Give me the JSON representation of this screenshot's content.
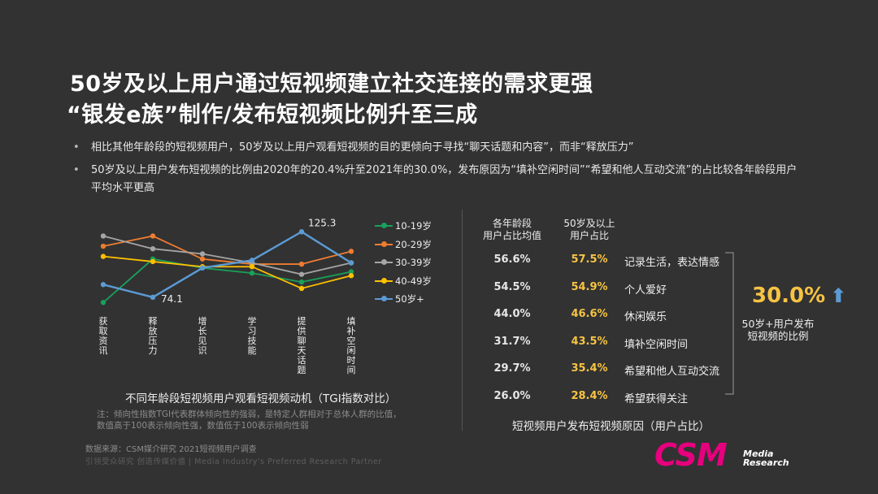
{
  "title_line1": "50岁及以上用户通过短视频建立社交连接的需求更强",
  "title_line2": "“银发e族”制作/发布短视频比例升至三成",
  "bullets": [
    "相比其他年龄段的短视频用户，50岁及以上用户观看短视频的目的更倾向于寻找“聊天话题和内容”，而非“释放压力”",
    "50岁及以上用户发布短视频的比例由2020年的20.4%升至2021年的30.0%，发布原因为“填补空闲时间”“希望和他人互动交流”的占比较各年龄段用户平均水平更高"
  ],
  "bullet_marker": "•",
  "colors": {
    "10-19": "#19a05a",
    "20-29": "#ed7d31",
    "30-39": "#a5a5a5",
    "40-49": "#ffc000",
    "50plus": "#5b9bd5",
    "accent": "#f6c343",
    "brand": "#e6007e"
  },
  "chart_data": [
    {
      "type": "line",
      "title": "不同年龄段短视频用户观看短视频动机（TGI指数对比）",
      "categories": [
        "获取资讯",
        "释放压力",
        "增长见识",
        "学习技能",
        "提供聊天话题",
        "填补空闲时间"
      ],
      "series": [
        {
          "name": "10-19岁",
          "values": [
            70,
            104,
            97,
            93,
            86,
            94
          ]
        },
        {
          "name": "20-29岁",
          "values": [
            114,
            122,
            104,
            100,
            100,
            110
          ]
        },
        {
          "name": "30-39岁",
          "values": [
            122,
            112,
            108,
            101,
            92,
            101
          ]
        },
        {
          "name": "40-49岁",
          "values": [
            106,
            102,
            98,
            98,
            81,
            91
          ]
        },
        {
          "name": "50岁+",
          "values": [
            84,
            74.1,
            97,
            103,
            125.3,
            101
          ]
        }
      ],
      "data_labels": [
        {
          "series": "50岁+",
          "index": 4,
          "text": "125.3"
        },
        {
          "series": "50岁+",
          "index": 1,
          "text": "74.1"
        }
      ],
      "ylim": [
        60,
        135
      ]
    },
    {
      "type": "table",
      "title": "短视频用户发布短视频原因（用户占比）",
      "columns": [
        "各年龄段用户占比均值",
        "50岁及以上用户占比"
      ],
      "rows": [
        {
          "reason": "记录生活，表达情感",
          "avg": "56.6%",
          "u50": "57.5%"
        },
        {
          "reason": "个人爱好",
          "avg": "54.5%",
          "u50": "54.9%"
        },
        {
          "reason": "休闲娱乐",
          "avg": "44.0%",
          "u50": "46.6%"
        },
        {
          "reason": "填补空闲时间",
          "avg": "31.7%",
          "u50": "43.5%"
        },
        {
          "reason": "希望和他人互动交流",
          "avg": "29.7%",
          "u50": "35.4%"
        },
        {
          "reason": "希望获得关注",
          "avg": "26.0%",
          "u50": "28.4%"
        }
      ]
    }
  ],
  "table_headers": {
    "avg_line1": "各年龄段",
    "avg_line2": "用户占比均值",
    "u50_line1": "50岁及以上",
    "u50_line2": "用户占比"
  },
  "kpi": {
    "value": "30.0%",
    "arrow": "⬆",
    "label_line1": "50岁+用户发布",
    "label_line2": "短视频的比例"
  },
  "note_line1": "注：倾向性指数TGI代表群体倾向性的强弱，是特定人群相对于总体人群的比值，",
  "note_line2": "数值高于100表示倾向性强，数值低于100表示倾向性弱",
  "source": "数据来源：CSM媒介研究 2021短视频用户调查",
  "slogan": "引领受众研究 创造传媒价值 | Media Industry's Preferred Research Partner",
  "logo": {
    "main": "CSM",
    "sub1": "Media",
    "sub2": "Research"
  }
}
